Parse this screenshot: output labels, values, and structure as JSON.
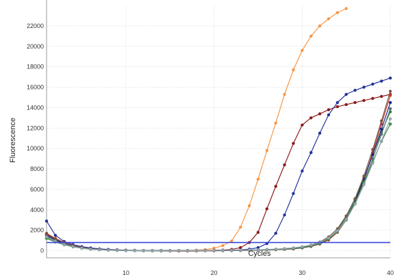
{
  "chart_data": {
    "type": "line",
    "title": "",
    "xlabel": "Cycles",
    "ylabel": "Fluorescence",
    "xlim": [
      1,
      40
    ],
    "ylim": [
      -700,
      24000
    ],
    "xticks": [
      10,
      20,
      30,
      40
    ],
    "yticks": [
      0,
      2000,
      4000,
      6000,
      8000,
      10000,
      12000,
      14000,
      16000,
      18000,
      20000,
      22000
    ],
    "grid": true,
    "legend": "none",
    "threshold": {
      "value": 800,
      "color": "#3344dd"
    },
    "series": [
      {
        "color": "#f79646",
        "x": [
          1,
          2,
          3,
          4,
          5,
          6,
          7,
          8,
          9,
          10,
          11,
          12,
          13,
          14,
          15,
          16,
          17,
          18,
          19,
          20,
          21,
          22,
          23,
          24,
          25,
          26,
          27,
          28,
          29,
          30,
          31,
          32,
          33,
          34,
          35
        ],
        "y": [
          1700,
          1200,
          800,
          500,
          350,
          200,
          120,
          80,
          50,
          30,
          20,
          15,
          10,
          10,
          10,
          20,
          30,
          50,
          100,
          250,
          500,
          950,
          2300,
          4400,
          7000,
          9800,
          12500,
          15300,
          17700,
          19600,
          21000,
          22000,
          22700,
          23300,
          23700
        ]
      },
      {
        "color": "#8b1a1a",
        "x": [
          1,
          2,
          3,
          4,
          5,
          6,
          7,
          8,
          9,
          10,
          11,
          12,
          13,
          14,
          15,
          16,
          17,
          18,
          19,
          20,
          21,
          22,
          23,
          24,
          25,
          26,
          27,
          28,
          29,
          30,
          31,
          32,
          33,
          34,
          35,
          36,
          37,
          38,
          39,
          40
        ],
        "y": [
          1600,
          1100,
          750,
          500,
          350,
          230,
          150,
          100,
          70,
          50,
          30,
          20,
          15,
          10,
          10,
          10,
          15,
          20,
          30,
          40,
          60,
          120,
          300,
          800,
          1800,
          4100,
          6300,
          8400,
          10500,
          12300,
          13000,
          13400,
          13800,
          14100,
          14300,
          14500,
          14700,
          14900,
          15100,
          15300
        ]
      },
      {
        "color": "#22339a",
        "x": [
          1,
          2,
          3,
          4,
          5,
          6,
          7,
          8,
          9,
          10,
          11,
          12,
          13,
          14,
          15,
          16,
          17,
          18,
          19,
          20,
          21,
          22,
          23,
          24,
          25,
          26,
          27,
          28,
          29,
          30,
          31,
          32,
          33,
          34,
          35,
          36,
          37,
          38,
          39,
          40
        ],
        "y": [
          2900,
          1500,
          900,
          600,
          400,
          270,
          180,
          120,
          80,
          50,
          35,
          25,
          20,
          15,
          10,
          10,
          15,
          15,
          20,
          30,
          40,
          50,
          80,
          150,
          300,
          700,
          1700,
          3500,
          5600,
          7800,
          9600,
          11500,
          13300,
          14500,
          15300,
          15700,
          16000,
          16300,
          16600,
          16900
        ]
      },
      {
        "color": "#2e7d32",
        "x": [
          1,
          2,
          3,
          4,
          5,
          6,
          7,
          8,
          9,
          10,
          11,
          12,
          13,
          14,
          15,
          16,
          17,
          18,
          19,
          20,
          21,
          22,
          23,
          24,
          25,
          26,
          27,
          28,
          29,
          30,
          31,
          32,
          33,
          34,
          35,
          36,
          37,
          38,
          39,
          40
        ],
        "y": [
          1300,
          900,
          600,
          400,
          250,
          150,
          100,
          70,
          50,
          30,
          20,
          10,
          5,
          0,
          0,
          0,
          0,
          0,
          0,
          0,
          10,
          20,
          30,
          50,
          60,
          80,
          100,
          150,
          200,
          300,
          450,
          700,
          1200,
          2000,
          3300,
          5000,
          7100,
          9400,
          11600,
          13600
        ]
      },
      {
        "color": "#c0392b",
        "x": [
          1,
          2,
          3,
          4,
          5,
          6,
          7,
          8,
          9,
          10,
          11,
          12,
          13,
          14,
          15,
          16,
          17,
          18,
          19,
          20,
          21,
          22,
          23,
          24,
          25,
          26,
          27,
          28,
          29,
          30,
          31,
          32,
          33,
          34,
          35,
          36,
          37,
          38,
          39,
          40
        ],
        "y": [
          1700,
          1200,
          800,
          500,
          300,
          180,
          110,
          70,
          40,
          20,
          10,
          0,
          -20,
          -30,
          -40,
          -40,
          -40,
          -30,
          -20,
          -10,
          0,
          10,
          20,
          30,
          50,
          70,
          100,
          130,
          180,
          280,
          420,
          650,
          1050,
          1800,
          3000,
          4700,
          6900,
          9600,
          12400,
          15200
        ]
      },
      {
        "color": "#1a237e",
        "x": [
          1,
          2,
          3,
          4,
          5,
          6,
          7,
          8,
          9,
          10,
          11,
          12,
          13,
          14,
          15,
          16,
          17,
          18,
          19,
          20,
          21,
          22,
          23,
          24,
          25,
          26,
          27,
          28,
          29,
          30,
          31,
          32,
          33,
          34,
          35,
          36,
          37,
          38,
          39,
          40
        ],
        "y": [
          1500,
          1050,
          700,
          450,
          280,
          170,
          100,
          60,
          30,
          10,
          0,
          -10,
          -10,
          -20,
          -20,
          -20,
          -10,
          -10,
          0,
          0,
          10,
          20,
          30,
          40,
          60,
          80,
          110,
          150,
          200,
          300,
          450,
          700,
          1150,
          1900,
          3100,
          4800,
          7000,
          9400,
          11900,
          14500
        ]
      },
      {
        "color": "#5a6e7f",
        "x": [
          1,
          2,
          3,
          4,
          5,
          6,
          7,
          8,
          9,
          10,
          11,
          12,
          13,
          14,
          15,
          16,
          17,
          18,
          19,
          20,
          21,
          22,
          23,
          24,
          25,
          26,
          27,
          28,
          29,
          30,
          31,
          32,
          33,
          34,
          35,
          36,
          37,
          38,
          39,
          40
        ],
        "y": [
          1400,
          950,
          650,
          420,
          270,
          160,
          100,
          60,
          40,
          20,
          10,
          0,
          0,
          -10,
          -10,
          -10,
          0,
          0,
          0,
          10,
          20,
          30,
          40,
          60,
          80,
          100,
          130,
          170,
          230,
          330,
          480,
          720,
          1150,
          1850,
          3000,
          4600,
          6700,
          9000,
          11400,
          13900
        ]
      },
      {
        "color": "#388e3c",
        "x": [
          1,
          2,
          3,
          4,
          5,
          6,
          7,
          8,
          9,
          10,
          11,
          12,
          13,
          14,
          15,
          16,
          17,
          18,
          19,
          20,
          21,
          22,
          23,
          24,
          25,
          26,
          27,
          28,
          29,
          30,
          31,
          32,
          33,
          34,
          35,
          36,
          37,
          38,
          39,
          40
        ],
        "y": [
          1200,
          850,
          580,
          380,
          240,
          140,
          90,
          50,
          30,
          10,
          0,
          0,
          -10,
          -10,
          -10,
          0,
          0,
          0,
          10,
          10,
          20,
          30,
          40,
          50,
          70,
          90,
          120,
          160,
          220,
          320,
          470,
          720,
          1150,
          1900,
          3100,
          4700,
          6600,
          8700,
          10700,
          12400
        ]
      },
      {
        "color": "#795548",
        "x": [
          1,
          2,
          3,
          4,
          5,
          6,
          7,
          8,
          9,
          10,
          11,
          12,
          13,
          14,
          15,
          16,
          17,
          18,
          19,
          20,
          21,
          22,
          23,
          24,
          25,
          26,
          27,
          28,
          29,
          30,
          31,
          32,
          33,
          34,
          35,
          36,
          37,
          38,
          39,
          40
        ],
        "y": [
          1650,
          1150,
          780,
          500,
          320,
          190,
          120,
          70,
          40,
          20,
          10,
          0,
          -10,
          -20,
          -20,
          -20,
          -10,
          0,
          0,
          10,
          20,
          30,
          40,
          60,
          80,
          110,
          150,
          200,
          270,
          380,
          560,
          850,
          1350,
          2150,
          3400,
          5100,
          7300,
          9900,
          12700,
          15600
        ]
      },
      {
        "color": "#90a4ae",
        "x": [
          1,
          2,
          3,
          4,
          5,
          6,
          7,
          8,
          9,
          10,
          11,
          12,
          13,
          14,
          15,
          16,
          17,
          18,
          19,
          20,
          21,
          22,
          23,
          24,
          25,
          26,
          27,
          28,
          29,
          30,
          31,
          32,
          33,
          34,
          35,
          36,
          37,
          38,
          39,
          40
        ],
        "y": [
          1350,
          920,
          620,
          400,
          250,
          150,
          90,
          50,
          30,
          10,
          0,
          0,
          0,
          -10,
          -10,
          0,
          0,
          10,
          10,
          20,
          30,
          40,
          50,
          70,
          90,
          120,
          160,
          210,
          280,
          390,
          560,
          820,
          1250,
          1950,
          3050,
          4550,
          6450,
          8550,
          10750,
          12900
        ]
      }
    ]
  }
}
